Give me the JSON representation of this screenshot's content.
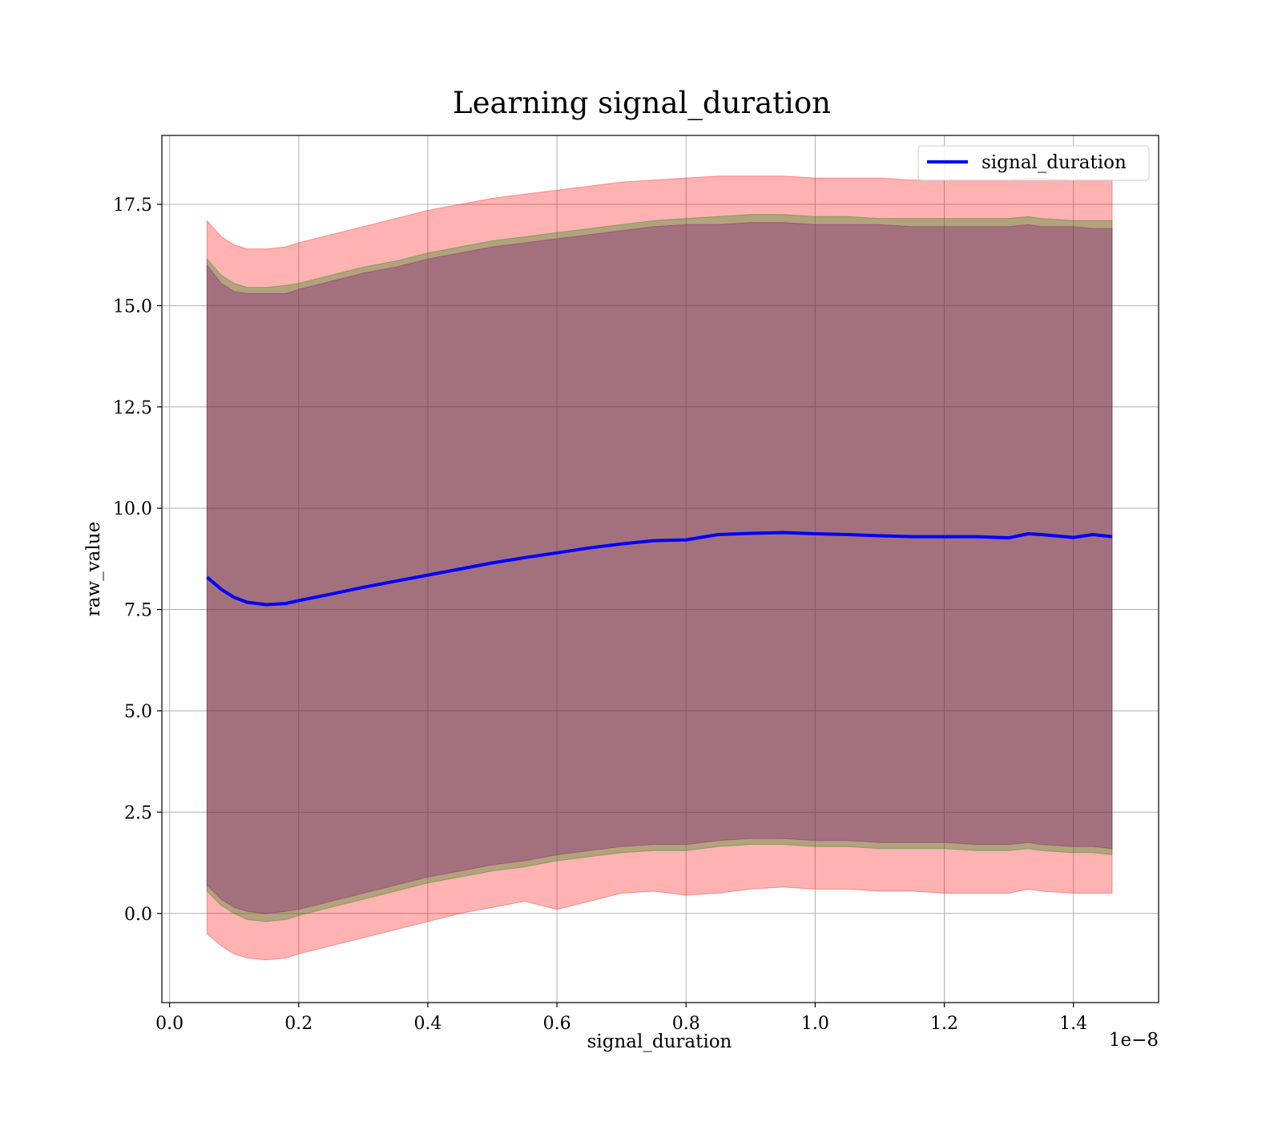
{
  "chart_data": {
    "type": "area",
    "title": "Learning signal_duration",
    "xlabel": "signal_duration",
    "ylabel": "raw_value",
    "x_offset_label": "1e−8",
    "xlim": [
      -0.012,
      1.532
    ],
    "ylim": [
      -2.2,
      19.2
    ],
    "x_ticks": [
      0.0,
      0.2,
      0.4,
      0.6,
      0.8,
      1.0,
      1.2,
      1.4
    ],
    "x_tick_labels": [
      "0.0",
      "0.2",
      "0.4",
      "0.6",
      "0.8",
      "1.0",
      "1.2",
      "1.4"
    ],
    "y_ticks": [
      0.0,
      2.5,
      5.0,
      7.5,
      10.0,
      12.5,
      15.0,
      17.5
    ],
    "y_tick_labels": [
      "0.0",
      "2.5",
      "5.0",
      "7.5",
      "10.0",
      "12.5",
      "15.0",
      "17.5"
    ],
    "grid": true,
    "legend_position": "top-right",
    "legend": [
      {
        "label": "signal_duration",
        "color": "#0000ff"
      }
    ],
    "x": [
      0.058,
      0.08,
      0.1,
      0.12,
      0.15,
      0.18,
      0.2,
      0.25,
      0.3,
      0.35,
      0.4,
      0.45,
      0.5,
      0.55,
      0.6,
      0.65,
      0.7,
      0.75,
      0.8,
      0.85,
      0.9,
      0.95,
      1.0,
      1.05,
      1.1,
      1.15,
      1.2,
      1.25,
      1.3,
      1.33,
      1.35,
      1.4,
      1.43,
      1.46
    ],
    "series": [
      {
        "name": "signal_duration",
        "color": "#0000ff",
        "values": [
          8.3,
          8.0,
          7.8,
          7.68,
          7.62,
          7.65,
          7.72,
          7.88,
          8.05,
          8.2,
          8.35,
          8.5,
          8.65,
          8.78,
          8.9,
          9.02,
          9.12,
          9.2,
          9.22,
          9.35,
          9.38,
          9.4,
          9.37,
          9.35,
          9.32,
          9.3,
          9.3,
          9.3,
          9.27,
          9.37,
          9.35,
          9.28,
          9.35,
          9.3
        ]
      }
    ],
    "bands": [
      {
        "color": "#ff0000",
        "opacity": 0.3,
        "upper": [
          17.1,
          16.7,
          16.5,
          16.4,
          16.4,
          16.45,
          16.55,
          16.75,
          16.95,
          17.15,
          17.35,
          17.5,
          17.65,
          17.75,
          17.85,
          17.95,
          18.05,
          18.1,
          18.15,
          18.2,
          18.2,
          18.2,
          18.15,
          18.15,
          18.15,
          18.1,
          18.1,
          18.1,
          18.1,
          18.15,
          18.15,
          18.1,
          18.1,
          18.1
        ],
        "lower": [
          -0.5,
          -0.8,
          -1.0,
          -1.1,
          -1.15,
          -1.1,
          -1.0,
          -0.8,
          -0.6,
          -0.4,
          -0.2,
          0.0,
          0.15,
          0.3,
          0.1,
          0.3,
          0.5,
          0.55,
          0.45,
          0.5,
          0.6,
          0.65,
          0.6,
          0.6,
          0.55,
          0.55,
          0.5,
          0.5,
          0.5,
          0.6,
          0.55,
          0.5,
          0.5,
          0.5
        ]
      },
      {
        "color": "#008000",
        "opacity": 0.3,
        "upper": [
          16.15,
          15.75,
          15.55,
          15.45,
          15.45,
          15.5,
          15.55,
          15.75,
          15.95,
          16.1,
          16.3,
          16.45,
          16.6,
          16.7,
          16.8,
          16.9,
          17.0,
          17.1,
          17.15,
          17.2,
          17.25,
          17.25,
          17.2,
          17.2,
          17.15,
          17.15,
          17.15,
          17.15,
          17.15,
          17.2,
          17.15,
          17.1,
          17.1,
          17.1
        ],
        "lower": [
          0.55,
          0.2,
          0.0,
          -0.15,
          -0.2,
          -0.15,
          -0.05,
          0.15,
          0.35,
          0.55,
          0.75,
          0.9,
          1.05,
          1.15,
          1.3,
          1.4,
          1.5,
          1.55,
          1.55,
          1.65,
          1.7,
          1.7,
          1.65,
          1.65,
          1.6,
          1.6,
          1.6,
          1.55,
          1.55,
          1.6,
          1.55,
          1.5,
          1.5,
          1.45
        ]
      },
      {
        "color": "#800080",
        "opacity": 0.3,
        "upper": [
          16.0,
          15.55,
          15.35,
          15.3,
          15.3,
          15.3,
          15.4,
          15.6,
          15.8,
          15.95,
          16.15,
          16.3,
          16.45,
          16.55,
          16.65,
          16.75,
          16.85,
          16.95,
          17.0,
          17.0,
          17.05,
          17.05,
          17.0,
          17.0,
          17.0,
          16.95,
          16.95,
          16.95,
          16.95,
          17.0,
          16.95,
          16.95,
          16.9,
          16.9
        ],
        "lower": [
          0.7,
          0.35,
          0.15,
          0.05,
          0.0,
          0.05,
          0.1,
          0.3,
          0.5,
          0.7,
          0.9,
          1.05,
          1.2,
          1.3,
          1.45,
          1.55,
          1.65,
          1.7,
          1.7,
          1.8,
          1.85,
          1.85,
          1.8,
          1.8,
          1.75,
          1.75,
          1.75,
          1.7,
          1.7,
          1.75,
          1.7,
          1.65,
          1.65,
          1.6
        ]
      }
    ]
  }
}
